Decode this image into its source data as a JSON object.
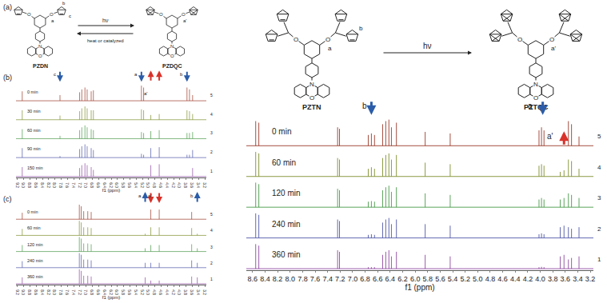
{
  "schemes": [
    {
      "panel_label": "(a)",
      "reactant": "PZDN",
      "product": "PZDQC",
      "forward": "hν",
      "reverse": "heat or catalyzed",
      "reactant_labels": [
        "a",
        "b",
        "c"
      ],
      "product_labels": [
        "a'"
      ],
      "arms": 2
    },
    {
      "reactant": "PZTN",
      "product": "PZTQC",
      "forward": "hν",
      "reactant_labels": [
        "a",
        "b"
      ],
      "product_labels": [
        "a'"
      ],
      "arms": 4
    }
  ],
  "atoms": {
    "oxygen": "O",
    "nitrogen": "N"
  },
  "chart_data": [
    {
      "type": "line",
      "panel_label": "(b)",
      "xlabel": "f1 (ppm)",
      "stacked": true,
      "grid": false,
      "tick_labels": "x",
      "xlim": [
        9.25,
        3.15
      ],
      "xticks": [
        9.2,
        {
          "value": 9,
          "label": "9.0"
        },
        8.8,
        8.6,
        8.4,
        8.2,
        {
          "value": 8,
          "label": "8.0"
        },
        7.8,
        7.6,
        7.4,
        7.2,
        {
          "value": 7,
          "label": "7.0"
        },
        6.8,
        6.6,
        6.4,
        6.2,
        {
          "value": 6,
          "label": "6.0"
        },
        5.8,
        5.6,
        5.4,
        5.2,
        {
          "value": 5,
          "label": "5.0"
        },
        4.8,
        4.6,
        4.4,
        4.2,
        {
          "value": 4,
          "label": "4.0"
        },
        3.8,
        3.6,
        3.4,
        3.2
      ],
      "series": [
        {
          "name": "0 min",
          "trace_label": "5",
          "color": "#9c3b2a",
          "x": [
            9.05,
            7.84,
            7.21,
            7.14,
            7.04,
            6.97,
            6.84,
            6.77,
            5.23,
            5.16,
            4.93,
            4.66,
            3.77,
            3.69,
            3.59
          ],
          "values": [
            0.5,
            0.3,
            0.45,
            0.6,
            0.7,
            0.6,
            0.5,
            0.55,
            0.8,
            0.7,
            0,
            0,
            0.7,
            0.6,
            0.3
          ]
        },
        {
          "name": "30 min",
          "trace_label": "4",
          "color": "#7f8f2e",
          "x": [
            9.05,
            7.84,
            7.21,
            7.14,
            7.04,
            6.97,
            6.84,
            6.77,
            5.23,
            5.16,
            4.93,
            4.66,
            3.77,
            3.69,
            3.59
          ],
          "values": [
            0.5,
            0.22,
            0.45,
            0.6,
            0.7,
            0.6,
            0.5,
            0.5,
            0.55,
            0.5,
            0.25,
            0.3,
            0.5,
            0.45,
            0.3
          ]
        },
        {
          "name": "60 min",
          "trace_label": "3",
          "color": "#4a9a4a",
          "x": [
            9.05,
            7.84,
            7.21,
            7.14,
            7.04,
            6.97,
            6.84,
            6.77,
            5.23,
            5.16,
            4.93,
            4.66,
            3.77,
            3.69,
            3.59
          ],
          "values": [
            0.5,
            0.15,
            0.45,
            0.6,
            0.7,
            0.6,
            0.5,
            0.45,
            0.35,
            0.3,
            0.4,
            0.45,
            0.3,
            0.3,
            0.35
          ]
        },
        {
          "name": "90 min",
          "trace_label": "2",
          "color": "#4f58a8",
          "x": [
            9.05,
            7.84,
            7.21,
            7.14,
            7.04,
            6.97,
            6.84,
            6.77,
            5.23,
            5.16,
            4.93,
            4.66,
            3.77,
            3.69,
            3.59
          ],
          "values": [
            0.5,
            0.08,
            0.45,
            0.6,
            0.7,
            0.6,
            0.5,
            0.4,
            0.2,
            0.15,
            0.5,
            0.55,
            0.15,
            0.15,
            0.4
          ]
        },
        {
          "name": "150 min",
          "trace_label": "1",
          "color": "#8e4aa0",
          "x": [
            9.05,
            7.84,
            7.21,
            7.14,
            7.04,
            6.97,
            6.84,
            6.77,
            5.23,
            5.16,
            4.93,
            4.66,
            3.77,
            3.69,
            3.59
          ],
          "values": [
            0.5,
            0,
            0.45,
            0.6,
            0.7,
            0.6,
            0.5,
            0.35,
            0,
            0,
            0.6,
            0.65,
            0,
            0,
            0.45
          ]
        }
      ],
      "annotations": [
        {
          "text": "c",
          "x": 7.84,
          "row": 0
        },
        {
          "text": "a",
          "x": 5.23,
          "row": 0
        },
        {
          "text": "b",
          "x": 3.77,
          "row": 0
        },
        {
          "text": "a'",
          "x": 4.93,
          "row": 1
        }
      ],
      "arrows": [
        {
          "x": 7.84,
          "row": 0,
          "direction": "down",
          "color": "#2b5ca8"
        },
        {
          "x": 5.23,
          "row": 0,
          "direction": "down",
          "color": "#2b5ca8"
        },
        {
          "x": 4.93,
          "row": 0,
          "direction": "up",
          "color": "#d8322a"
        },
        {
          "x": 4.66,
          "row": 0,
          "direction": "up",
          "color": "#d8322a"
        },
        {
          "x": 3.77,
          "row": 0,
          "direction": "down",
          "color": "#2b5ca8"
        }
      ]
    },
    {
      "type": "line",
      "panel_label": "(c)",
      "xlabel": "f1 (ppm)",
      "stacked": true,
      "grid": false,
      "tick_labels": "x",
      "xlim": [
        9.25,
        3.15
      ],
      "xticks": [
        9.2,
        {
          "value": 9,
          "label": "9.0"
        },
        8.8,
        8.6,
        8.4,
        8.2,
        {
          "value": 8,
          "label": "8.0"
        },
        7.8,
        7.6,
        7.4,
        7.2,
        {
          "value": 7,
          "label": "7.0"
        },
        6.8,
        6.6,
        6.4,
        6.2,
        {
          "value": 6,
          "label": "6.0"
        },
        5.8,
        5.6,
        5.4,
        5.2,
        {
          "value": 5,
          "label": "5.0"
        },
        4.8,
        4.6,
        4.4,
        4.2,
        {
          "value": 4,
          "label": "4.0"
        },
        3.8,
        3.6,
        3.4,
        3.2
      ],
      "series": [
        {
          "name": "0 min",
          "trace_label": "5",
          "color": "#9c3b2a",
          "x": [
            9.05,
            7.22,
            7.16,
            7.08,
            6.95,
            6.84,
            5.11,
            4.93,
            4.66,
            3.62,
            3.44
          ],
          "values": [
            0.4,
            0.9,
            0.8,
            0.5,
            0.5,
            0.45,
            0,
            0.6,
            0.6,
            0.45,
            0
          ]
        },
        {
          "name": "60 min",
          "trace_label": "4",
          "color": "#7f8f2e",
          "x": [
            9.05,
            7.22,
            7.16,
            7.08,
            6.95,
            6.84,
            5.11,
            4.93,
            4.66,
            3.62,
            3.44
          ],
          "values": [
            0.4,
            0.9,
            0.8,
            0.5,
            0.5,
            0.45,
            0.1,
            0.5,
            0.5,
            0.45,
            0.1
          ]
        },
        {
          "name": "120 min",
          "trace_label": "3",
          "color": "#4a9a4a",
          "x": [
            9.05,
            7.22,
            7.16,
            7.08,
            6.95,
            6.84,
            5.11,
            4.93,
            4.66,
            3.62,
            3.44
          ],
          "values": [
            0.4,
            0.9,
            0.8,
            0.5,
            0.5,
            0.45,
            0.2,
            0.4,
            0.4,
            0.45,
            0.2
          ]
        },
        {
          "name": "240 min",
          "trace_label": "2",
          "color": "#4f58a8",
          "x": [
            9.05,
            7.22,
            7.16,
            7.08,
            6.95,
            6.84,
            5.11,
            4.93,
            4.66,
            3.62,
            3.44
          ],
          "values": [
            0.4,
            0.9,
            0.8,
            0.5,
            0.5,
            0.45,
            0.3,
            0.3,
            0.3,
            0.45,
            0.3
          ]
        },
        {
          "name": "360 min",
          "trace_label": "1",
          "color": "#8e4aa0",
          "x": [
            9.05,
            7.22,
            7.16,
            7.08,
            6.95,
            6.84,
            5.11,
            4.93,
            4.66,
            3.62,
            3.44
          ],
          "values": [
            0.4,
            0.9,
            0.8,
            0.5,
            0.5,
            0.45,
            0.4,
            0.2,
            0.2,
            0.45,
            0.4
          ]
        }
      ],
      "annotations": [
        {
          "text": "a",
          "x": 5.11,
          "row": 0
        },
        {
          "text": "a'",
          "x": 4.79,
          "row": 0
        },
        {
          "text": "b",
          "x": 3.44,
          "row": 0
        }
      ],
      "arrows": [
        {
          "x": 5.11,
          "row": 0,
          "direction": "up",
          "color": "#2b5ca8"
        },
        {
          "x": 4.93,
          "row": 0,
          "direction": "down",
          "color": "#d8322a"
        },
        {
          "x": 4.66,
          "row": 0,
          "direction": "down",
          "color": "#d8322a"
        },
        {
          "x": 3.44,
          "row": 0,
          "direction": "up",
          "color": "#2b5ca8"
        }
      ]
    },
    {
      "type": "line",
      "xlabel": "f1 (ppm)",
      "stacked": true,
      "grid": false,
      "tick_labels": "x",
      "xlim": [
        8.7,
        3.15
      ],
      "xticks": [
        8.6,
        8.4,
        8.2,
        {
          "value": 8,
          "label": "8.0"
        },
        7.8,
        7.6,
        7.4,
        7.2,
        {
          "value": 7,
          "label": "7.0"
        },
        6.8,
        6.6,
        6.4,
        6.2,
        {
          "value": 6,
          "label": "6.0"
        },
        5.8,
        5.6,
        5.4,
        5.2,
        {
          "value": 5,
          "label": "5.0"
        },
        4.8,
        4.6,
        4.4,
        4.2,
        {
          "value": 4,
          "label": "4.0"
        },
        3.8,
        3.6,
        3.4,
        3.2
      ],
      "series": [
        {
          "name": "0 min",
          "trace_label": "5",
          "color": "#9c3b2a",
          "x": [
            8.55,
            8.5,
            7.24,
            7.21,
            6.75,
            6.7,
            6.65,
            6.52,
            6.47,
            6.42,
            6.38,
            6.3,
            5.84,
            5.44,
            4.02,
            3.98,
            3.94,
            3.68,
            3.62,
            3.55,
            3.5,
            3.38
          ],
          "values": [
            0.8,
            0.75,
            0.6,
            0.55,
            0.35,
            0.4,
            0.35,
            0.7,
            0.8,
            0.85,
            0.6,
            0.75,
            0.45,
            0.4,
            0.5,
            0.6,
            0.5,
            0,
            0,
            0.8,
            0.7,
            0.3
          ]
        },
        {
          "name": "60 min",
          "trace_label": "4",
          "color": "#7f8f2e",
          "x": [
            8.55,
            8.5,
            7.24,
            7.21,
            6.75,
            6.7,
            6.65,
            6.52,
            6.47,
            6.42,
            6.38,
            6.3,
            5.84,
            5.44,
            4.02,
            3.98,
            3.94,
            3.68,
            3.62,
            3.55,
            3.5,
            3.38
          ],
          "values": [
            0.8,
            0.75,
            0.6,
            0.55,
            0.25,
            0.3,
            0.25,
            0.6,
            0.7,
            0.75,
            0.55,
            0.7,
            0.45,
            0.4,
            0.35,
            0.4,
            0.35,
            0.15,
            0.2,
            0.55,
            0.5,
            0.25
          ]
        },
        {
          "name": "120 min",
          "trace_label": "3",
          "color": "#4a9a4a",
          "x": [
            8.55,
            8.5,
            7.24,
            7.21,
            6.75,
            6.7,
            6.65,
            6.52,
            6.47,
            6.42,
            6.38,
            6.3,
            5.84,
            5.44,
            4.02,
            3.98,
            3.94,
            3.68,
            3.62,
            3.55,
            3.5,
            3.38
          ],
          "values": [
            0.8,
            0.75,
            0.6,
            0.55,
            0.18,
            0.2,
            0.18,
            0.55,
            0.65,
            0.7,
            0.5,
            0.65,
            0.45,
            0.4,
            0.25,
            0.3,
            0.25,
            0.25,
            0.3,
            0.45,
            0.4,
            0.3
          ]
        },
        {
          "name": "240 min",
          "trace_label": "2",
          "color": "#4f58a8",
          "x": [
            8.55,
            8.5,
            7.24,
            7.21,
            6.75,
            6.7,
            6.65,
            6.52,
            6.47,
            6.42,
            6.38,
            6.3,
            5.84,
            5.44,
            4.02,
            3.98,
            3.94,
            3.68,
            3.62,
            3.55,
            3.5,
            3.38
          ],
          "values": [
            0.8,
            0.75,
            0.6,
            0.55,
            0.1,
            0.12,
            0.1,
            0.5,
            0.6,
            0.65,
            0.45,
            0.6,
            0.45,
            0.4,
            0.12,
            0.15,
            0.12,
            0.35,
            0.4,
            0.35,
            0.3,
            0.35
          ]
        },
        {
          "name": "360 min",
          "trace_label": "1",
          "color": "#8e4aa0",
          "x": [
            8.55,
            8.5,
            7.24,
            7.21,
            6.75,
            6.7,
            6.65,
            6.52,
            6.47,
            6.42,
            6.38,
            6.3,
            5.84,
            5.44,
            4.02,
            3.98,
            3.94,
            3.68,
            3.62,
            3.55,
            3.5,
            3.38
          ],
          "values": [
            0.8,
            0.75,
            0.6,
            0.55,
            0.05,
            0.05,
            0.05,
            0.45,
            0.55,
            0.6,
            0.4,
            0.55,
            0.45,
            0.4,
            0.05,
            0.06,
            0.05,
            0.4,
            0.45,
            0.3,
            0.35,
            0.4
          ]
        }
      ],
      "annotations": [
        {
          "text": "b",
          "x": 6.7,
          "row": 0
        },
        {
          "text": "a",
          "x": 4.06,
          "row": 0
        },
        {
          "text": "a'",
          "x": 3.72,
          "row": 1
        }
      ],
      "arrows": [
        {
          "x": 6.7,
          "row": 0,
          "direction": "down",
          "color": "#2b5ca8"
        },
        {
          "x": 3.96,
          "row": 0,
          "direction": "down",
          "color": "#2b5ca8"
        },
        {
          "x": 3.62,
          "row": 1,
          "direction": "up",
          "color": "#d8322a"
        }
      ]
    }
  ]
}
